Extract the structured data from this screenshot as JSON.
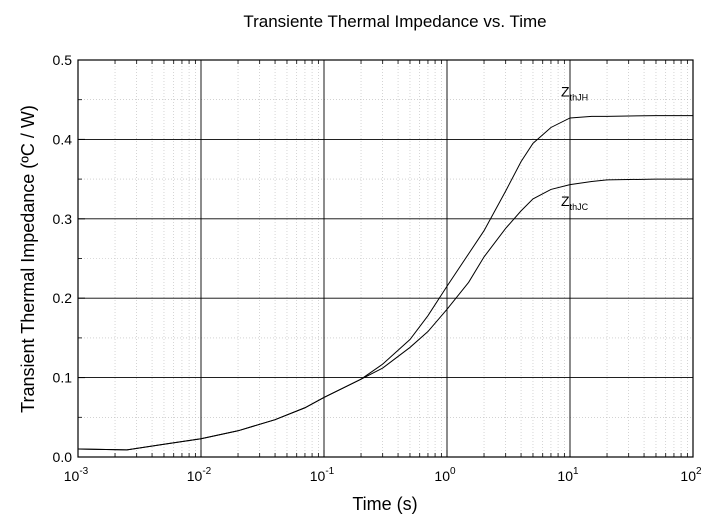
{
  "chart_data": {
    "type": "line",
    "title": "Transiente Thermal Impedance vs. Time",
    "xlabel": "Time (s)",
    "ylabel": "Transient Thermal Impedance (ºC / W)",
    "x_scale": "log",
    "xlim": [
      0.001,
      100
    ],
    "ylim": [
      0.0,
      0.5
    ],
    "x_tick_labels": [
      {
        "base": "10",
        "exp": "-3"
      },
      {
        "base": "10",
        "exp": "-2"
      },
      {
        "base": "10",
        "exp": "-1"
      },
      {
        "base": "10",
        "exp": "0"
      },
      {
        "base": "10",
        "exp": "1"
      },
      {
        "base": "10",
        "exp": "2"
      }
    ],
    "y_ticks": [
      "0.0",
      "0.1",
      "0.2",
      "0.3",
      "0.4",
      "0.5"
    ],
    "grid": "on",
    "series": [
      {
        "name_main": "Z",
        "name_sub": "thJH",
        "x": [
          0.001,
          0.0025,
          0.005,
          0.01,
          0.02,
          0.04,
          0.07,
          0.1,
          0.2,
          0.3,
          0.5,
          0.7,
          1,
          1.5,
          2,
          3,
          4,
          5,
          7,
          10,
          15,
          20,
          50,
          100
        ],
        "y": [
          0.01,
          0.009,
          0.016,
          0.023,
          0.033,
          0.047,
          0.062,
          0.075,
          0.098,
          0.117,
          0.148,
          0.178,
          0.215,
          0.256,
          0.285,
          0.335,
          0.372,
          0.395,
          0.415,
          0.427,
          0.429,
          0.429,
          0.43,
          0.43
        ]
      },
      {
        "name_main": "Z",
        "name_sub": "thJC",
        "x": [
          0.001,
          0.0025,
          0.005,
          0.01,
          0.02,
          0.04,
          0.07,
          0.1,
          0.2,
          0.3,
          0.5,
          0.7,
          1,
          1.5,
          2,
          3,
          4,
          5,
          7,
          10,
          15,
          20,
          50,
          100
        ],
        "y": [
          0.01,
          0.009,
          0.016,
          0.023,
          0.033,
          0.047,
          0.062,
          0.075,
          0.098,
          0.112,
          0.138,
          0.158,
          0.186,
          0.22,
          0.252,
          0.288,
          0.31,
          0.325,
          0.337,
          0.343,
          0.347,
          0.349,
          0.35,
          0.35
        ]
      }
    ]
  }
}
